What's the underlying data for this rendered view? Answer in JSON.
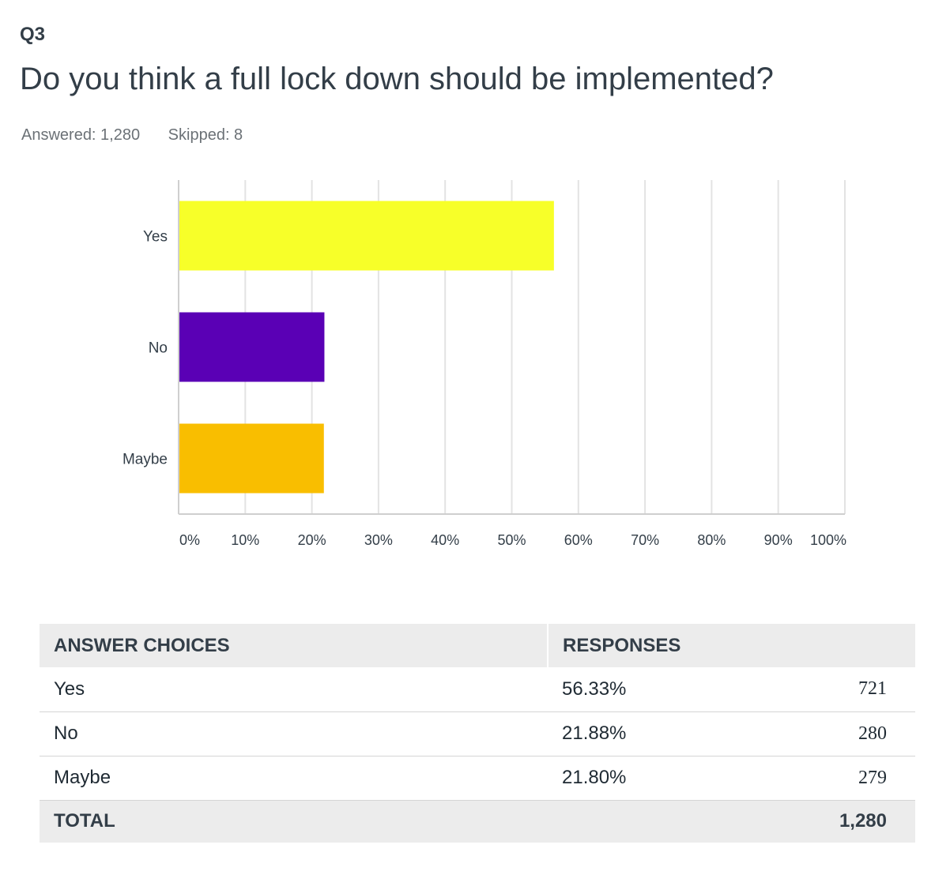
{
  "question": {
    "number": "Q3",
    "title": "Do you think a full lock down should be implemented?",
    "answered": "Answered: 1,280",
    "skipped": "Skipped: 8"
  },
  "chart_data": {
    "type": "bar",
    "orientation": "horizontal",
    "categories": [
      "Yes",
      "No",
      "Maybe"
    ],
    "values": [
      56.33,
      21.88,
      21.8
    ],
    "colors": [
      "#f7ff29",
      "#5a00b5",
      "#f9be00"
    ],
    "xlim": [
      0,
      100
    ],
    "x_ticks": [
      "0%",
      "10%",
      "20%",
      "30%",
      "40%",
      "50%",
      "60%",
      "70%",
      "80%",
      "90%",
      "100%"
    ],
    "grid": true
  },
  "table": {
    "headers": {
      "choices": "ANSWER CHOICES",
      "responses": "RESPONSES"
    },
    "rows": [
      {
        "choice": "Yes",
        "percent": "56.33%",
        "count": "721"
      },
      {
        "choice": "No",
        "percent": "21.88%",
        "count": "280"
      },
      {
        "choice": "Maybe",
        "percent": "21.80%",
        "count": "279"
      }
    ],
    "total": {
      "label": "TOTAL",
      "count": "1,280"
    }
  }
}
